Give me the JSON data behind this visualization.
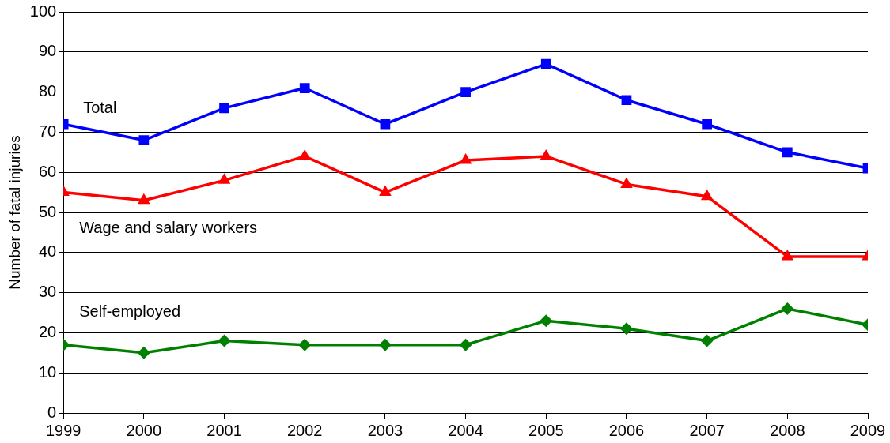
{
  "chart_data": {
    "type": "line",
    "ylabel": "Number of fatal injuries",
    "x": [
      1999,
      2000,
      2001,
      2002,
      2003,
      2004,
      2005,
      2006,
      2007,
      2008,
      2009
    ],
    "series": [
      {
        "name": "Total",
        "color": "#0000ff",
        "marker": "square",
        "values": [
          72,
          68,
          76,
          81,
          72,
          80,
          87,
          78,
          72,
          65,
          61
        ]
      },
      {
        "name": "Wage and salary workers",
        "color": "#ff0000",
        "marker": "triangle",
        "values": [
          55,
          53,
          58,
          64,
          55,
          63,
          64,
          57,
          54,
          39,
          39
        ]
      },
      {
        "name": "Self-employed",
        "color": "#008000",
        "marker": "diamond",
        "values": [
          17,
          15,
          18,
          17,
          17,
          17,
          23,
          21,
          18,
          26,
          22
        ]
      }
    ],
    "xlim": [
      1999,
      2009
    ],
    "xticks": [
      1999,
      2000,
      2001,
      2002,
      2003,
      2004,
      2005,
      2006,
      2007,
      2008,
      2009
    ],
    "ylim": [
      0,
      100
    ],
    "yticks": [
      0,
      10,
      20,
      30,
      40,
      50,
      60,
      70,
      80,
      90,
      100
    ],
    "grid": "y",
    "legend": false,
    "line_style": "solid"
  }
}
